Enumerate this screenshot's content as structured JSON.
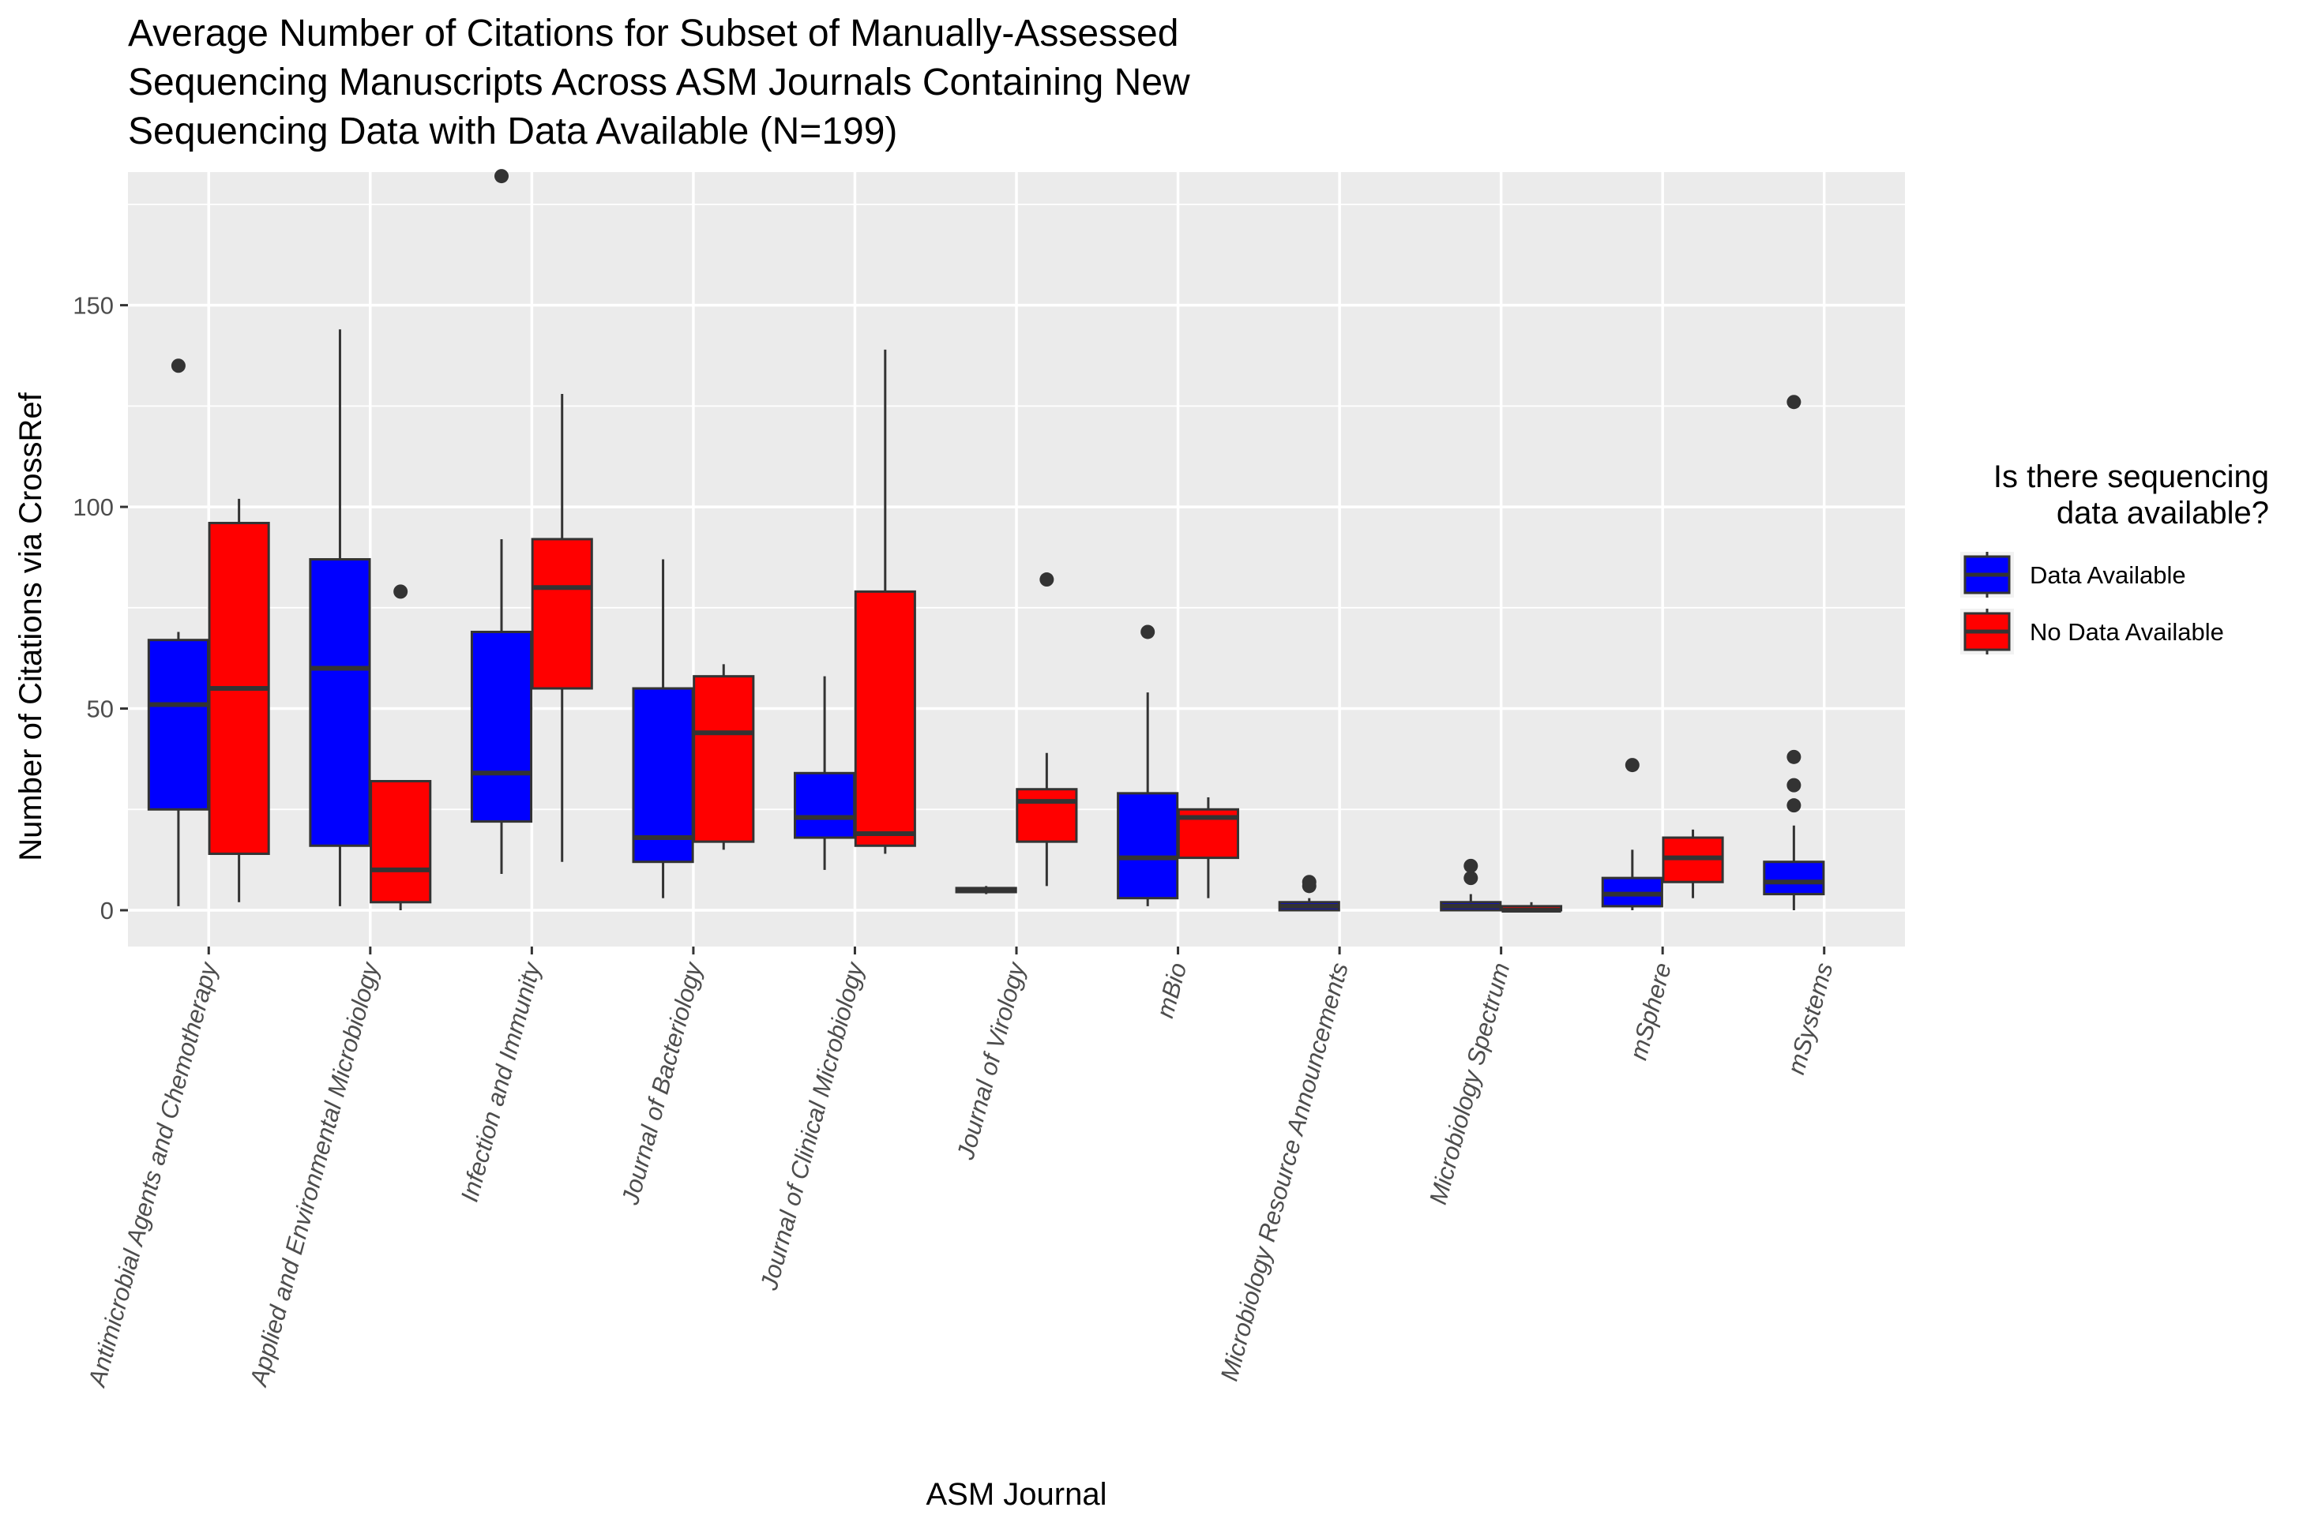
{
  "chart_data": {
    "type": "boxplot",
    "title_lines": [
      "Average Number of Citations for Subset of Manually-Assessed",
      "Sequencing Manuscripts Across ASM Journals Containing New",
      "Sequencing Data with Data Available (N=199)"
    ],
    "xlabel": "ASM Journal",
    "ylabel": "Number of Citations via CrossRef",
    "ylim": [
      -9,
      182
    ],
    "y_ticks": [
      0,
      50,
      100,
      150
    ],
    "categories": [
      "Antimicrobial Agents and Chemotherapy",
      "Applied and Environmental Microbiology",
      "Infection and Immunity",
      "Journal of Bacteriology",
      "Journal of Clinical Microbiology",
      "Journal of Virology",
      "mBio",
      "Microbiology Resource Announcements",
      "Microbiology Spectrum",
      "mSphere",
      "mSystems"
    ],
    "legend": {
      "title_lines": [
        "Is there sequencing",
        "data available?"
      ],
      "position": "right"
    },
    "series": [
      {
        "name": "Data Available",
        "color": "#0000ff",
        "boxes": [
          {
            "min": 1,
            "q1": 25,
            "median": 51,
            "q3": 67,
            "max": 69,
            "outliers": [
              135
            ]
          },
          {
            "min": 1,
            "q1": 16,
            "median": 60,
            "q3": 87,
            "max": 144,
            "outliers": []
          },
          {
            "min": 9,
            "q1": 22,
            "median": 34,
            "q3": 69,
            "max": 92,
            "outliers": [
              182
            ]
          },
          {
            "min": 3,
            "q1": 12,
            "median": 18,
            "q3": 55,
            "max": 87,
            "outliers": []
          },
          {
            "min": 10,
            "q1": 18,
            "median": 23,
            "q3": 34,
            "max": 58,
            "outliers": []
          },
          {
            "min": 4,
            "q1": 4.5,
            "median": 5,
            "q3": 5.5,
            "max": 6,
            "outliers": []
          },
          {
            "min": 1,
            "q1": 3,
            "median": 13,
            "q3": 29,
            "max": 54,
            "outliers": [
              69
            ]
          },
          {
            "min": 0,
            "q1": 0,
            "median": 1,
            "q3": 2,
            "max": 3,
            "outliers": [
              6,
              7
            ]
          },
          {
            "min": 0,
            "q1": 0,
            "median": 1,
            "q3": 2,
            "max": 4,
            "outliers": [
              8,
              11
            ]
          },
          {
            "min": 0,
            "q1": 1,
            "median": 4,
            "q3": 8,
            "max": 15,
            "outliers": [
              36
            ]
          },
          {
            "min": 0,
            "q1": 4,
            "median": 7,
            "q3": 12,
            "max": 21,
            "outliers": [
              26,
              31,
              38,
              126
            ]
          }
        ]
      },
      {
        "name": "No Data Available",
        "color": "#ff0000",
        "boxes": [
          {
            "min": 2,
            "q1": 14,
            "median": 55,
            "q3": 96,
            "max": 102,
            "outliers": []
          },
          {
            "min": 0,
            "q1": 2,
            "median": 10,
            "q3": 32,
            "max": 32,
            "outliers": [
              79
            ]
          },
          {
            "min": 12,
            "q1": 55,
            "median": 80,
            "q3": 92,
            "max": 128,
            "outliers": []
          },
          {
            "min": 15,
            "q1": 17,
            "median": 44,
            "q3": 58,
            "max": 61,
            "outliers": []
          },
          {
            "min": 14,
            "q1": 16,
            "median": 19,
            "q3": 79,
            "max": 139,
            "outliers": []
          },
          {
            "min": 6,
            "q1": 17,
            "median": 27,
            "q3": 30,
            "max": 39,
            "outliers": [
              82
            ]
          },
          {
            "min": 3,
            "q1": 13,
            "median": 23,
            "q3": 25,
            "max": 28,
            "outliers": []
          },
          null,
          {
            "min": 0,
            "q1": 0,
            "median": 0,
            "q3": 1,
            "max": 2,
            "outliers": []
          },
          {
            "min": 3,
            "q1": 7,
            "median": 13,
            "q3": 18,
            "max": 20,
            "outliers": []
          },
          null
        ]
      }
    ]
  }
}
